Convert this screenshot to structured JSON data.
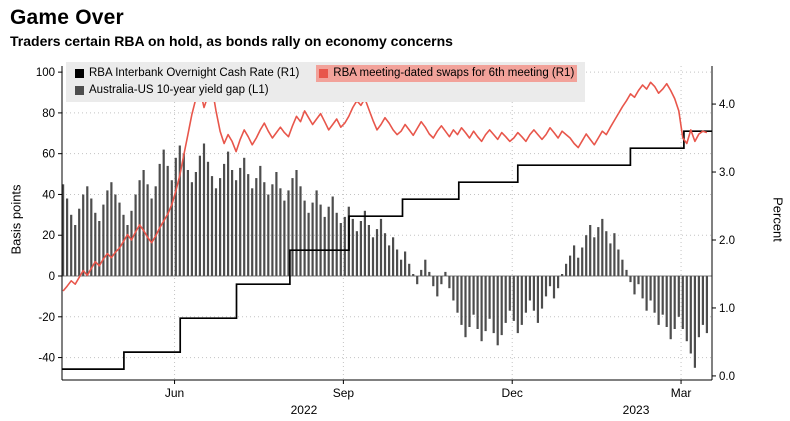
{
  "header": {
    "title": "Game Over",
    "subtitle": "Traders certain RBA on hold, as bonds rally on economy concerns"
  },
  "legend": {
    "items": [
      {
        "label": "RBA Interbank Overnight Cash Rate (R1)",
        "color": "#000000",
        "highlight": false
      },
      {
        "label": "RBA meeting-dated swaps for 6th meeting (R1)",
        "color": "#e8564b",
        "highlight": true
      },
      {
        "label": "Australia-US 10-year yield gap (L1)",
        "color": "#4d4d4d",
        "highlight": false
      }
    ]
  },
  "chart_data": {
    "type": "mixed",
    "title": "Game Over",
    "subtitle": "Traders certain RBA on hold, as bonds rally on economy concerns",
    "x_unit": "months since Apr 2022",
    "xlim": [
      0,
      11.55
    ],
    "ylim_left": [
      -51,
      103
    ],
    "ylim_right": [
      -0.06,
      4.56
    ],
    "left_axis_label": "Basis points",
    "right_axis_label": "Percent",
    "left_ticks": [
      100,
      80,
      60,
      40,
      20,
      0,
      -20,
      -40
    ],
    "right_ticks": [
      4.0,
      3.0,
      2.0,
      1.0,
      0.0
    ],
    "x_ticks": [
      {
        "pos": 2.0,
        "label": "Jun"
      },
      {
        "pos": 5.0,
        "label": "Sep"
      },
      {
        "pos": 8.0,
        "label": "Dec"
      },
      {
        "pos": 11.0,
        "label": "Mar"
      }
    ],
    "year_labels": [
      {
        "pos": 4.3,
        "label": "2022"
      },
      {
        "pos": 10.2,
        "label": "2023"
      }
    ],
    "grid": true,
    "legend_position": "top-left-inside",
    "series": [
      {
        "name": "RBA Interbank Overnight Cash Rate",
        "legend": "RBA Interbank Overnight Cash Rate (R1)",
        "axis": "right",
        "type": "step",
        "color": "#000000",
        "steps": [
          [
            0,
            0.1
          ],
          [
            1.1,
            0.35
          ],
          [
            2.1,
            0.85
          ],
          [
            3.1,
            1.35
          ],
          [
            4.05,
            1.85
          ],
          [
            5.1,
            2.35
          ],
          [
            6.05,
            2.6
          ],
          [
            7.05,
            2.85
          ],
          [
            8.1,
            3.1
          ],
          [
            10.1,
            3.35
          ],
          [
            11.05,
            3.6
          ]
        ]
      },
      {
        "name": "RBA meeting-dated swaps for 6th meeting",
        "legend": "RBA meeting-dated swaps for 6th meeting (R1)",
        "axis": "right",
        "type": "line",
        "color": "#e8564b",
        "x_start": 0.02,
        "x_step": 0.0715,
        "values": [
          1.25,
          1.32,
          1.4,
          1.35,
          1.45,
          1.55,
          1.48,
          1.58,
          1.68,
          1.62,
          1.72,
          1.8,
          1.74,
          1.82,
          1.88,
          1.98,
          2.08,
          2.0,
          2.12,
          2.22,
          2.14,
          2.04,
          1.96,
          2.06,
          2.18,
          2.28,
          2.38,
          2.52,
          2.72,
          2.95,
          3.25,
          3.55,
          3.85,
          4.08,
          4.22,
          3.95,
          4.12,
          4.25,
          3.9,
          3.6,
          3.42,
          3.55,
          3.45,
          3.3,
          3.48,
          3.62,
          3.52,
          3.4,
          3.5,
          3.62,
          3.72,
          3.6,
          3.5,
          3.58,
          3.66,
          3.58,
          3.52,
          3.68,
          3.82,
          3.74,
          3.9,
          3.8,
          3.7,
          3.78,
          3.86,
          3.74,
          3.62,
          3.7,
          3.78,
          3.66,
          3.72,
          3.82,
          3.95,
          4.05,
          3.98,
          4.08,
          3.92,
          3.76,
          3.62,
          3.7,
          3.8,
          3.72,
          3.62,
          3.55,
          3.6,
          3.7,
          3.62,
          3.54,
          3.64,
          3.74,
          3.66,
          3.56,
          3.5,
          3.6,
          3.68,
          3.6,
          3.52,
          3.62,
          3.55,
          3.65,
          3.58,
          3.5,
          3.6,
          3.52,
          3.45,
          3.55,
          3.62,
          3.55,
          3.48,
          3.58,
          3.52,
          3.45,
          3.5,
          3.58,
          3.52,
          3.45,
          3.55,
          3.62,
          3.55,
          3.48,
          3.55,
          3.65,
          3.58,
          3.5,
          3.6,
          3.55,
          3.5,
          3.42,
          3.36,
          3.46,
          3.56,
          3.48,
          3.4,
          3.5,
          3.6,
          3.55,
          3.66,
          3.76,
          3.86,
          3.96,
          4.05,
          4.15,
          4.1,
          4.2,
          4.28,
          4.22,
          4.32,
          4.26,
          4.16,
          4.22,
          4.3,
          4.2,
          4.08,
          3.9,
          3.5,
          3.42,
          3.62,
          3.45,
          3.56,
          3.6,
          3.58
        ]
      },
      {
        "name": "Australia-US 10-year yield gap",
        "legend": "Australia-US 10-year yield gap (L1)",
        "axis": "left",
        "type": "bar",
        "color": "#4d4d4d",
        "x_start": 0.02,
        "x_step": 0.0715,
        "values": [
          45,
          38,
          30,
          25,
          33,
          40,
          44,
          38,
          31,
          27,
          35,
          42,
          46,
          40,
          36,
          30,
          25,
          32,
          40,
          47,
          52,
          45,
          38,
          44,
          55,
          62,
          54,
          47,
          58,
          64,
          60,
          52,
          46,
          51,
          59,
          65,
          56,
          49,
          43,
          48,
          55,
          61,
          52,
          47,
          53,
          58,
          50,
          43,
          48,
          54,
          46,
          40,
          45,
          51,
          43,
          37,
          42,
          48,
          52,
          44,
          37,
          31,
          36,
          42,
          35,
          29,
          34,
          39,
          31,
          26,
          29,
          34,
          28,
          22,
          27,
          32,
          25,
          19,
          23,
          28,
          21,
          15,
          19,
          13,
          8,
          12,
          6,
          1,
          -4,
          3,
          8,
          2,
          -5,
          -10,
          -4,
          2,
          -6,
          -12,
          -18,
          -24,
          -30,
          -25,
          -19,
          -26,
          -32,
          -27,
          -21,
          -28,
          -34,
          -29,
          -23,
          -17,
          -22,
          -28,
          -24,
          -18,
          -12,
          -17,
          -23,
          -16,
          -10,
          -5,
          -11,
          -6,
          1,
          6,
          10,
          15,
          9,
          14,
          20,
          25,
          19,
          24,
          28,
          22,
          16,
          21,
          13,
          8,
          3,
          -3,
          -9,
          -4,
          -11,
          -17,
          -12,
          -18,
          -24,
          -19,
          -25,
          -31,
          -26,
          -20,
          -26,
          -32,
          -38,
          -45,
          -30,
          -24,
          -28
        ]
      }
    ]
  }
}
